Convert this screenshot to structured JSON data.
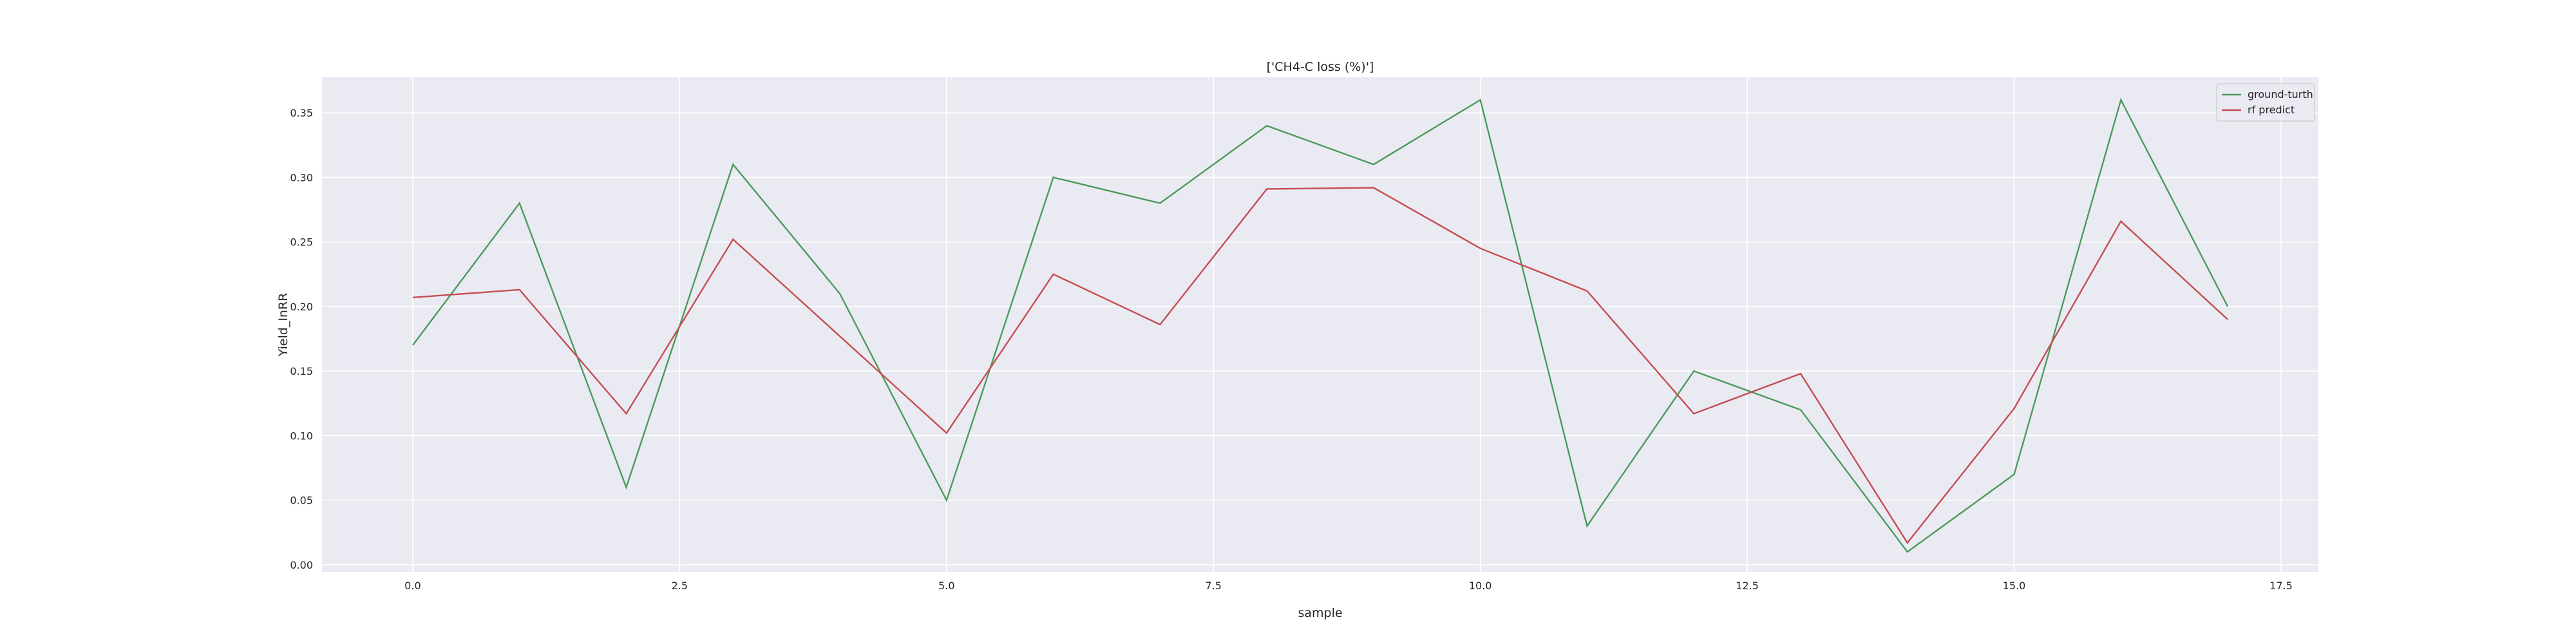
{
  "chart_data": {
    "type": "line",
    "title": "['CH4-C loss (%)']",
    "xlabel": "sample",
    "ylabel": "Yield_InRR",
    "xlim": [
      -0.85,
      17.85
    ],
    "ylim": [
      -0.0055,
      0.3775
    ],
    "xticks": [
      0.0,
      2.5,
      5.0,
      7.5,
      10.0,
      12.5,
      15.0,
      17.5
    ],
    "xtick_labels": [
      "0.0",
      "2.5",
      "5.0",
      "7.5",
      "10.0",
      "12.5",
      "15.0",
      "17.5"
    ],
    "yticks": [
      0.0,
      0.05,
      0.1,
      0.15,
      0.2,
      0.25,
      0.3,
      0.35
    ],
    "ytick_labels": [
      "0.00",
      "0.05",
      "0.10",
      "0.15",
      "0.20",
      "0.25",
      "0.30",
      "0.35"
    ],
    "grid": true,
    "legend_position": "top-right",
    "x": [
      0,
      1,
      2,
      3,
      4,
      5,
      6,
      7,
      8,
      9,
      10,
      11,
      12,
      13,
      14,
      15,
      16,
      17
    ],
    "series": [
      {
        "name": "ground-turth",
        "color": "#4c9a5c",
        "values": [
          0.17,
          0.28,
          0.06,
          0.31,
          0.21,
          0.05,
          0.3,
          0.28,
          0.34,
          0.31,
          0.36,
          0.03,
          0.15,
          0.12,
          0.01,
          0.07,
          0.36,
          0.2
        ]
      },
      {
        "name": "rf predict",
        "color": "#c44e52",
        "values": [
          0.207,
          0.213,
          0.117,
          0.252,
          0.177,
          0.102,
          0.225,
          0.186,
          0.291,
          0.292,
          0.245,
          0.212,
          0.117,
          0.148,
          0.017,
          0.121,
          0.266,
          0.19
        ]
      }
    ],
    "colors": {
      "plot_background": "#eaeaf2",
      "grid": "#ffffff",
      "text": "#262626",
      "legend_background": "#eaeaf2",
      "legend_border": "#cccccc"
    }
  }
}
